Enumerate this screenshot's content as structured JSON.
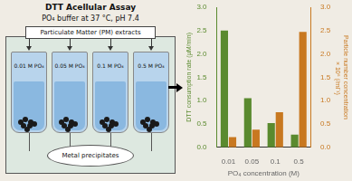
{
  "chart_data": {
    "type": "bar",
    "title": "DTT Acellular Assay",
    "subtitle": "PO₄ buffer at 37 °C, pH 7.4",
    "annotations": [
      "Particulate Matter (PM) extracts",
      "0.01 M PO₄",
      "0.05 M PO₄",
      "0.1 M PO₄",
      "0.5 M PO₄",
      "Metal precipitates"
    ],
    "categories": [
      "0.01",
      "0.05",
      "0.1",
      "0.5"
    ],
    "x_label": "PO₄ concentration (M)",
    "y_label": "DTT consumption rate (μM/min)",
    "y2_label": "Particle number concentration\n × 10⁶ (/ml⁻¹)",
    "series": [
      {
        "name": "DTT consumption rate (μM/min)",
        "color": "#5a8a2e",
        "values": [
          2.5,
          1.05,
          0.52,
          0.27
        ]
      },
      {
        "name": "Particle number concentration\n × 10⁶ (/ml⁻¹)",
        "color": "#c87820",
        "values": [
          0.22,
          0.38,
          0.75,
          2.47
        ],
        "axis": "y2"
      }
    ],
    "ylim": [
      0,
      3.0
    ],
    "yticks": [
      {
        "value": 0,
        "label": "0.0"
      },
      0.5,
      {
        "value": 1.0,
        "label": "1.0"
      },
      1.5,
      {
        "value": 2.0,
        "label": "2.0"
      },
      2.5,
      {
        "value": 3.0,
        "label": "3.0"
      }
    ],
    "y2lim": [
      0,
      3.0
    ],
    "y2ticks": [
      {
        "value": 0,
        "label": "0.0"
      },
      0.5,
      {
        "value": 1.0,
        "label": "1.0"
      },
      1.5,
      {
        "value": 2.0,
        "label": "2.0"
      },
      2.5,
      {
        "value": 3.0,
        "label": "3.0"
      }
    ],
    "grid": false,
    "legend": false
  }
}
